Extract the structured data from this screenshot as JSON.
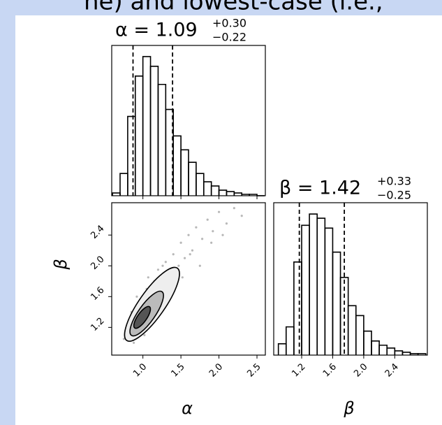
{
  "header_fragment": "ne) and lowest-case (i.e.,",
  "chart_data": {
    "type": "corner",
    "xlabel": "α",
    "ylabel": "β",
    "xlim": [
      0.59,
      2.61
    ],
    "ylim": [
      0.84,
      2.82
    ],
    "xticks": [
      {
        "value": 1,
        "label": "1.0"
      },
      1.5,
      {
        "value": 2,
        "label": "2.0"
      },
      2.5
    ],
    "yticks": [
      1.2,
      1.6,
      {
        "value": 2,
        "label": "2.0"
      },
      2.4
    ],
    "hist_ylim": [
      0,
      1.08
    ],
    "color": "#000000",
    "alpha_hist": {
      "title": "α = 1.09",
      "title_sup": "+0.30",
      "title_sub": "−0.22",
      "bins": [
        0.6,
        0.7,
        0.8,
        0.9,
        1.0,
        1.1,
        1.2,
        1.3,
        1.4,
        1.5,
        1.6,
        1.7,
        1.8,
        1.9,
        2.0,
        2.1,
        2.2,
        2.3,
        2.4,
        2.5,
        2.6
      ],
      "counts": [
        0.02,
        0.16,
        0.57,
        0.86,
        1.0,
        0.93,
        0.8,
        0.62,
        0.43,
        0.33,
        0.24,
        0.16,
        0.1,
        0.07,
        0.04,
        0.03,
        0.02,
        0.01,
        0.01,
        0.0
      ],
      "quantiles": [
        0.87,
        1.39
      ]
    },
    "beta_hist": {
      "title": "β = 1.42",
      "title_sup": "+0.33",
      "title_sub": "−0.25",
      "bins": [
        0.9,
        1.0,
        1.1,
        1.2,
        1.3,
        1.4,
        1.5,
        1.6,
        1.7,
        1.8,
        1.9,
        2.0,
        2.1,
        2.2,
        2.3,
        2.4,
        2.5,
        2.6,
        2.7,
        2.8
      ],
      "counts": [
        0.08,
        0.2,
        0.66,
        0.92,
        1.0,
        0.97,
        0.9,
        0.73,
        0.55,
        0.35,
        0.28,
        0.17,
        0.1,
        0.07,
        0.05,
        0.03,
        0.02,
        0.01,
        0.01
      ],
      "quantiles": [
        1.17,
        1.75
      ]
    },
    "scatter": {
      "x": [
        0.75,
        0.82,
        0.88,
        0.9,
        0.95,
        0.97,
        1.0,
        1.02,
        1.05,
        1.08,
        1.1,
        1.12,
        1.15,
        1.18,
        1.2,
        1.22,
        1.25,
        1.28,
        1.3,
        1.33,
        1.36,
        1.4,
        1.43,
        1.47,
        1.5,
        1.55,
        1.6,
        1.65,
        1.7,
        1.78,
        1.85,
        1.92,
        2.0,
        2.1,
        2.2,
        2.3,
        0.85,
        0.92,
        1.0,
        1.07,
        1.13,
        1.19,
        1.26,
        1.34,
        1.42,
        1.52,
        1.62,
        1.75,
        1.9,
        2.05
      ],
      "y": [
        1.05,
        1.15,
        1.0,
        1.3,
        1.45,
        1.2,
        1.55,
        1.1,
        1.7,
        1.35,
        1.6,
        1.25,
        1.8,
        1.5,
        1.95,
        1.4,
        1.75,
        1.6,
        2.05,
        1.7,
        1.9,
        2.15,
        1.8,
        2.0,
        2.3,
        2.1,
        2.4,
        2.2,
        2.5,
        2.35,
        2.6,
        2.45,
        2.7,
        2.55,
        2.75,
        2.65,
        1.4,
        1.6,
        1.25,
        1.85,
        1.45,
        1.65,
        2.0,
        1.55,
        1.95,
        1.85,
        2.15,
        2.0,
        2.3,
        2.4
      ]
    },
    "contours": [
      {
        "cx": 1.12,
        "cy": 1.5,
        "rx": 0.58,
        "ry": 0.17,
        "angle": 55,
        "color": "#eeeeee"
      },
      {
        "cx": 1.05,
        "cy": 1.38,
        "rx": 0.35,
        "ry": 0.11,
        "angle": 55,
        "color": "#bbbbbb"
      },
      {
        "cx": 0.99,
        "cy": 1.33,
        "rx": 0.17,
        "ry": 0.06,
        "angle": 55,
        "color": "#555555"
      }
    ]
  }
}
